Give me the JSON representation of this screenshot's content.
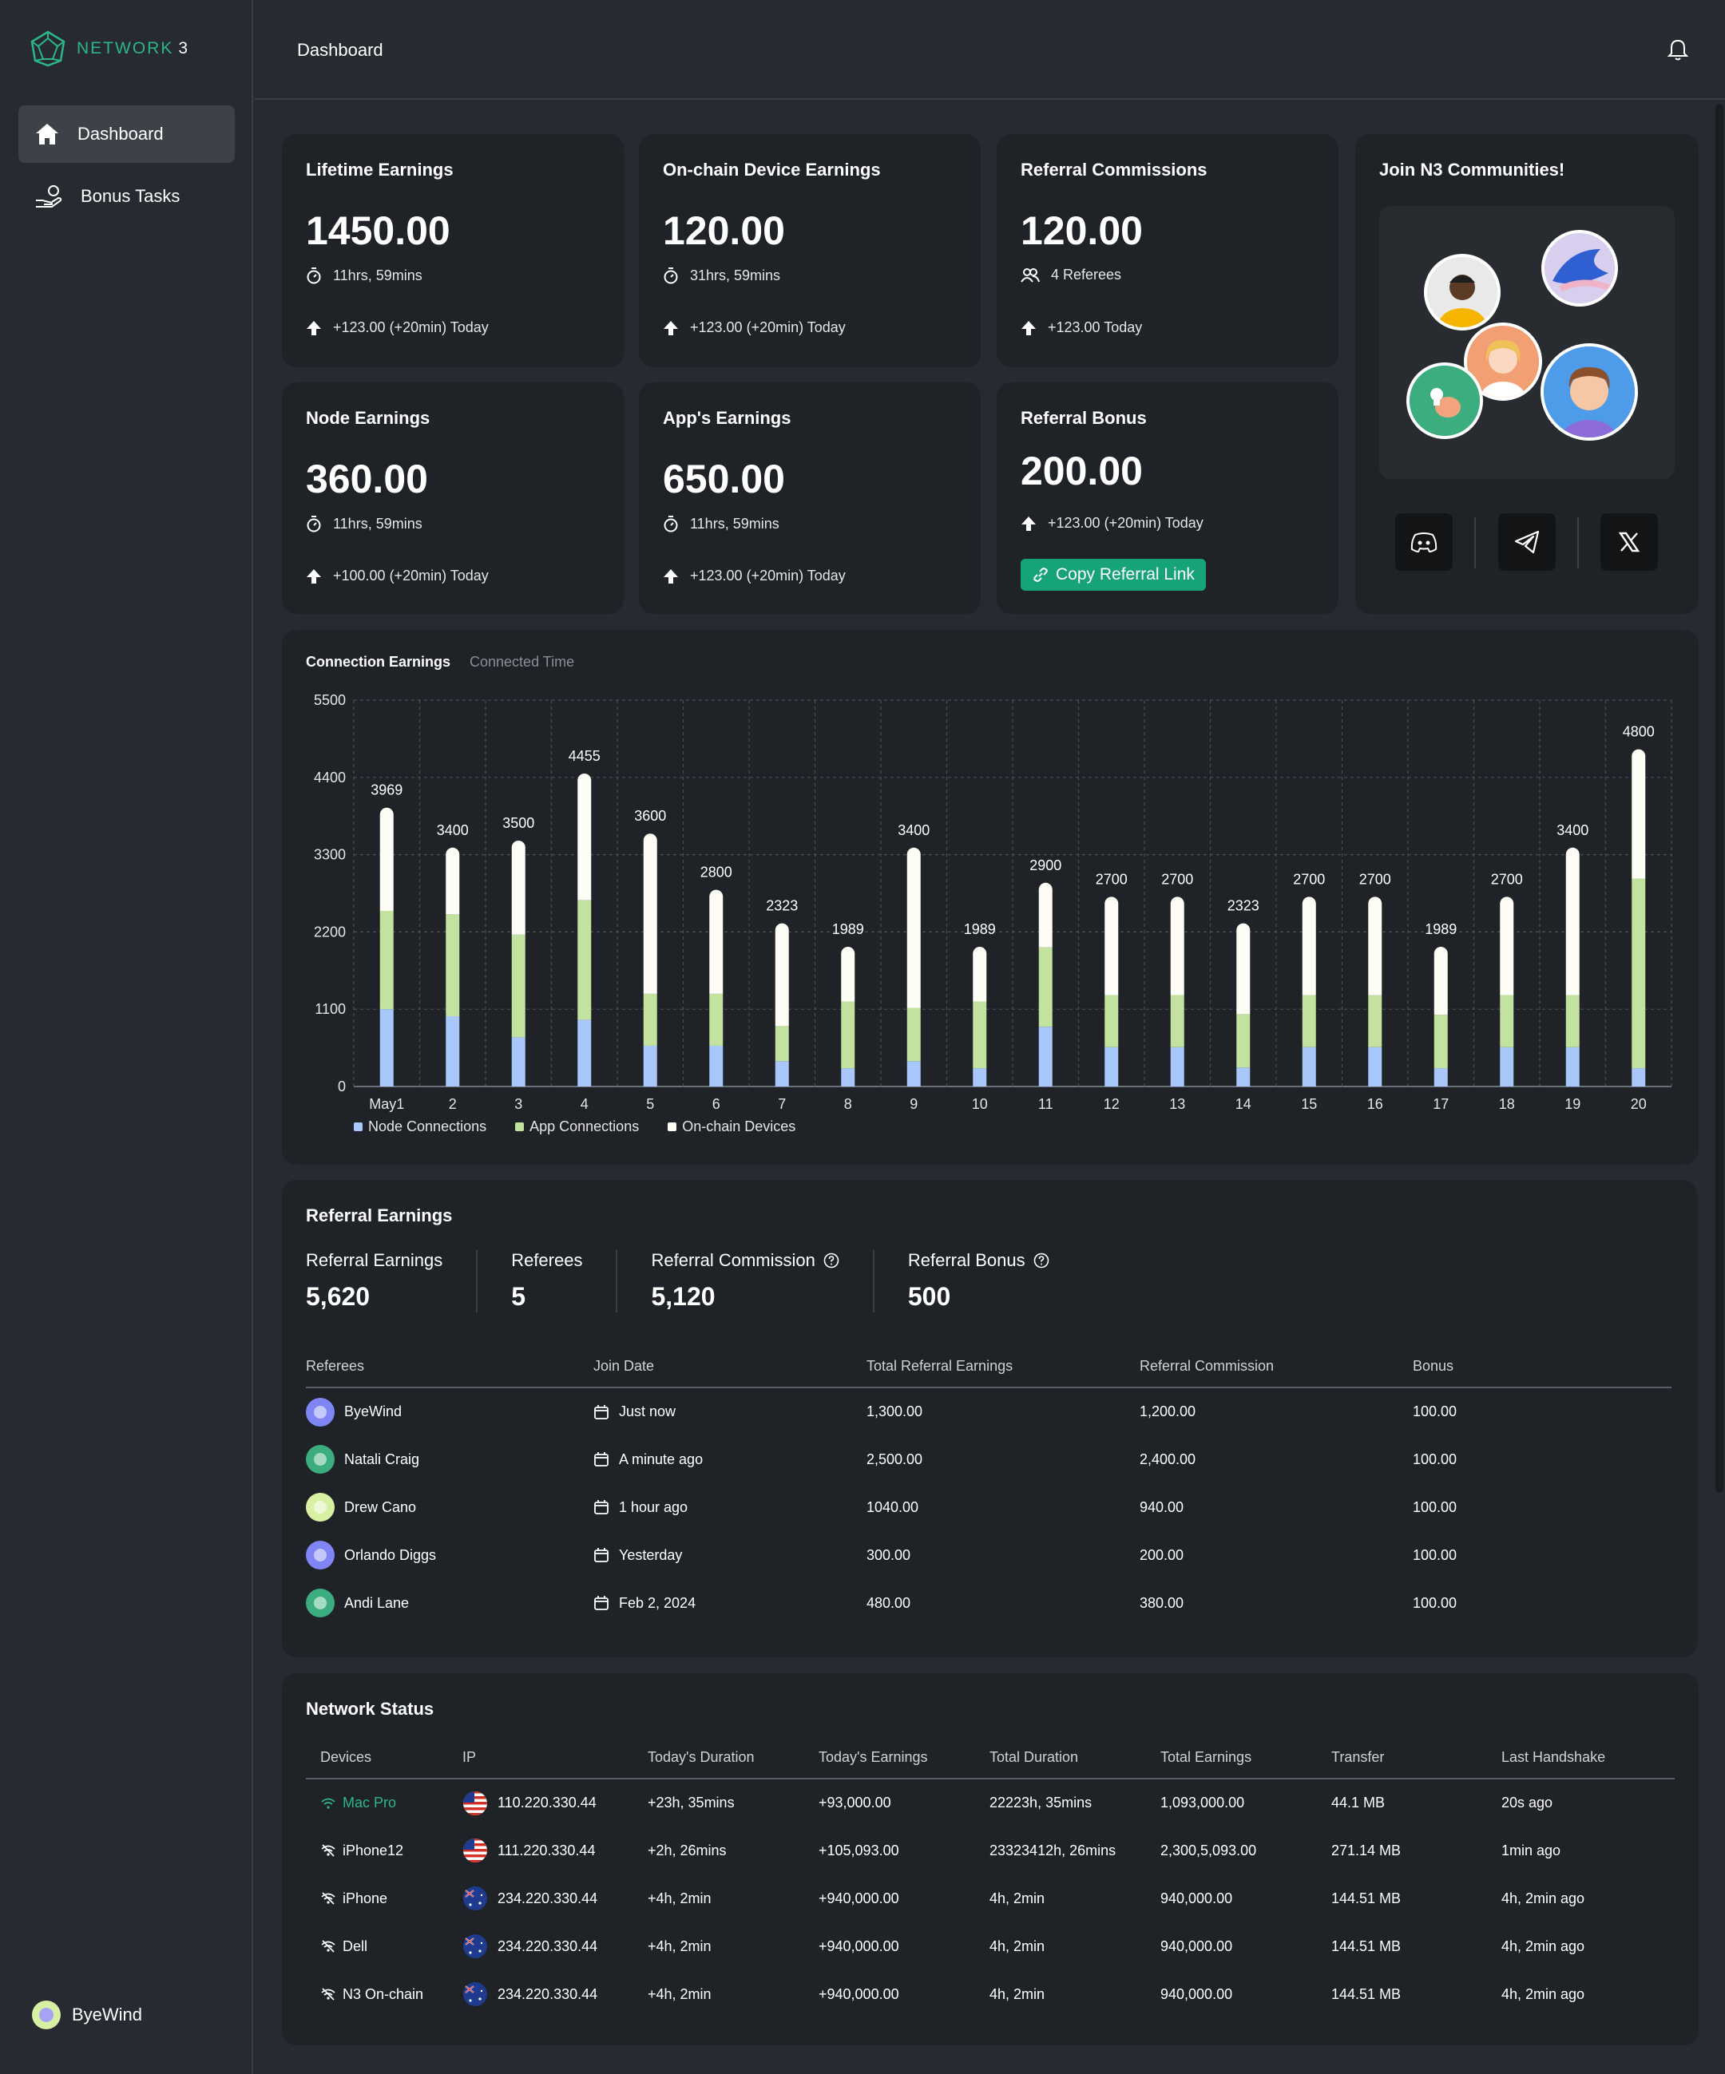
{
  "brand": {
    "name": "NETWORK",
    "suffix": "3"
  },
  "sidebar": {
    "items": [
      {
        "label": "Dashboard",
        "icon": "home-icon",
        "active": true
      },
      {
        "label": "Bonus Tasks",
        "icon": "hand-coins-icon",
        "active": false
      }
    ],
    "user": {
      "name": "ByeWind"
    }
  },
  "header": {
    "title": "Dashboard"
  },
  "cards": {
    "lifetime": {
      "title": "Lifetime Earnings",
      "value": "1450.00",
      "time": "11hrs, 59mins",
      "change": "+123.00 (+20min) Today"
    },
    "onchain": {
      "title": "On-chain Device Earnings",
      "value": "120.00",
      "time": "31hrs, 59mins",
      "change": "+123.00 (+20min) Today"
    },
    "referral_commissions": {
      "title": "Referral Commissions",
      "value": "120.00",
      "referees": "4 Referees",
      "change": "+123.00 Today"
    },
    "node": {
      "title": "Node Earnings",
      "value": "360.00",
      "time": "11hrs, 59mins",
      "change": "+100.00 (+20min) Today"
    },
    "apps": {
      "title": "App's Earnings",
      "value": "650.00",
      "time": "11hrs, 59mins",
      "change": "+123.00 (+20min) Today"
    },
    "referral_bonus": {
      "title": "Referral Bonus",
      "value": "200.00",
      "change": "+123.00 (+20min) Today",
      "button": "Copy Referral Link"
    }
  },
  "community": {
    "title": "Join N3 Communities!",
    "socials": [
      "discord-icon",
      "telegram-icon",
      "x-icon"
    ]
  },
  "chart_tabs": {
    "active": "Connection Earnings",
    "inactive": "Connected Time"
  },
  "chart_data": {
    "type": "bar",
    "stacked": true,
    "categories": [
      "May1",
      "2",
      "3",
      "4",
      "5",
      "6",
      "7",
      "8",
      "9",
      "10",
      "11",
      "12",
      "13",
      "14",
      "15",
      "16",
      "17",
      "18",
      "19",
      "20"
    ],
    "totals": [
      3969,
      3400,
      3500,
      4455,
      3600,
      2800,
      2323,
      1989,
      3400,
      1989,
      2900,
      2700,
      2700,
      2323,
      2700,
      2700,
      1989,
      2700,
      3400,
      4800
    ],
    "series": [
      {
        "name": "Node Connections",
        "color": "#a8c7fa",
        "values": [
          1100,
          1000,
          700,
          950,
          580,
          580,
          360,
          260,
          360,
          260,
          850,
          560,
          560,
          270,
          560,
          560,
          260,
          560,
          560,
          260
        ]
      },
      {
        "name": "App Connections",
        "color": "#c3e29f",
        "values": [
          1400,
          1450,
          1460,
          1700,
          740,
          740,
          500,
          950,
          760,
          950,
          1130,
          740,
          740,
          760,
          740,
          740,
          760,
          740,
          740,
          2700
        ]
      },
      {
        "name": "On-chain Devices",
        "color": "#fdfdf5",
        "values": [
          1469,
          950,
          1340,
          1805,
          2280,
          1480,
          1463,
          779,
          2280,
          779,
          920,
          1400,
          1400,
          1293,
          1400,
          1400,
          969,
          1400,
          2100,
          1840
        ]
      }
    ],
    "yticks": [
      0,
      1100,
      2200,
      3300,
      4400,
      5500
    ],
    "ylim": [
      0,
      5500
    ],
    "grid": true,
    "legend": "bottom-left"
  },
  "referral": {
    "title": "Referral Earnings",
    "stats": [
      {
        "label": "Referral Earnings",
        "value": "5,620",
        "help": false
      },
      {
        "label": "Referees",
        "value": "5",
        "help": false
      },
      {
        "label": "Referral Commission",
        "value": "5,120",
        "help": true
      },
      {
        "label": "Referral Bonus",
        "value": "500",
        "help": true
      }
    ],
    "columns": [
      "Referees",
      "Join Date",
      "Total Referral Earnings",
      "Referral Commission",
      "Bonus"
    ],
    "rows": [
      {
        "name": "ByeWind",
        "avatar": "#7f85f5",
        "date": "Just now",
        "total": "1,300.00",
        "commission": "1,200.00",
        "bonus": "100.00"
      },
      {
        "name": "Natali Craig",
        "avatar": "#3cad7f",
        "date": "A minute ago",
        "total": "2,500.00",
        "commission": "2,400.00",
        "bonus": "100.00"
      },
      {
        "name": "Drew Cano",
        "avatar": "#d8f0a4",
        "date": "1 hour ago",
        "total": "1040.00",
        "commission": "940.00",
        "bonus": "100.00"
      },
      {
        "name": "Orlando Diggs",
        "avatar": "#7f85f5",
        "date": "Yesterday",
        "total": "300.00",
        "commission": "200.00",
        "bonus": "100.00"
      },
      {
        "name": "Andi Lane",
        "avatar": "#3cad7f",
        "date": "Feb 2, 2024",
        "total": "480.00",
        "commission": "380.00",
        "bonus": "100.00"
      }
    ]
  },
  "network": {
    "title": "Network Status",
    "columns": [
      "Devices",
      "IP",
      "Today's Duration",
      "Today's Earnings",
      "Total Duration",
      "Total Earnings",
      "Transfer",
      "Last Handshake"
    ],
    "rows": [
      {
        "device": "Mac Pro",
        "online": true,
        "flag": "us",
        "ip": "110.220.330.44",
        "today_duration": "+23h, 35mins",
        "today_earnings": "+93,000.00",
        "total_duration": "22223h, 35mins",
        "total_earnings": "1,093,000.00",
        "transfer": "44.1 MB",
        "handshake": "20s ago"
      },
      {
        "device": "iPhone12",
        "online": false,
        "flag": "us",
        "ip": "111.220.330.44",
        "today_duration": "+2h, 26mins",
        "today_earnings": "+105,093.00",
        "total_duration": "23323412h, 26mins",
        "total_earnings": "2,300,5,093.00",
        "transfer": "271.14 MB",
        "handshake": "1min ago"
      },
      {
        "device": "iPhone",
        "online": false,
        "flag": "au",
        "ip": "234.220.330.44",
        "today_duration": "+4h, 2min",
        "today_earnings": "+940,000.00",
        "total_duration": "4h, 2min",
        "total_earnings": "940,000.00",
        "transfer": "144.51 MB",
        "handshake": "4h, 2min ago"
      },
      {
        "device": "Dell",
        "online": false,
        "flag": "au",
        "ip": "234.220.330.44",
        "today_duration": "+4h, 2min",
        "today_earnings": "+940,000.00",
        "total_duration": "4h, 2min",
        "total_earnings": "940,000.00",
        "transfer": "144.51 MB",
        "handshake": "4h, 2min ago"
      },
      {
        "device": "N3 On-chain",
        "online": false,
        "flag": "au",
        "ip": "234.220.330.44",
        "today_duration": "+4h, 2min",
        "today_earnings": "+940,000.00",
        "total_duration": "4h, 2min",
        "total_earnings": "940,000.00",
        "transfer": "144.51 MB",
        "handshake": "4h, 2min ago"
      }
    ]
  }
}
